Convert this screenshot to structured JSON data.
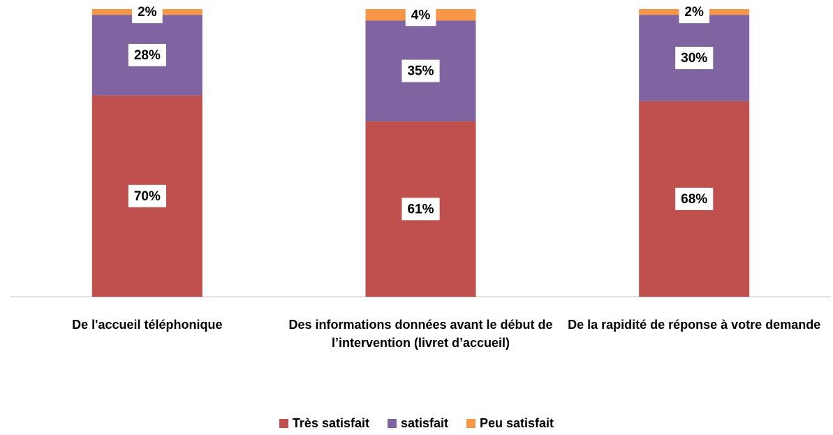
{
  "chart_data": {
    "type": "stacked-bar",
    "categories": [
      "De l'accueil téléphonique",
      "Des informations données avant le début de l’intervention (livret d’accueil)",
      "De la rapidité de réponse à votre demande"
    ],
    "series": [
      {
        "name": "Très satisfait",
        "color": "#c0504d",
        "values": [
          70,
          61,
          68
        ],
        "value_labels": [
          "70%",
          "61%",
          "68%"
        ]
      },
      {
        "name": "satisfait",
        "color": "#8064a2",
        "values": [
          28,
          35,
          30
        ],
        "value_labels": [
          "28%",
          "35%",
          "30%"
        ]
      },
      {
        "name": "Peu satisfait",
        "color": "#f79646",
        "values": [
          2,
          4,
          2
        ],
        "value_labels": [
          "2%",
          "4%",
          "2%"
        ]
      }
    ],
    "ylim": [
      0,
      100
    ],
    "legend": "bottom"
  }
}
